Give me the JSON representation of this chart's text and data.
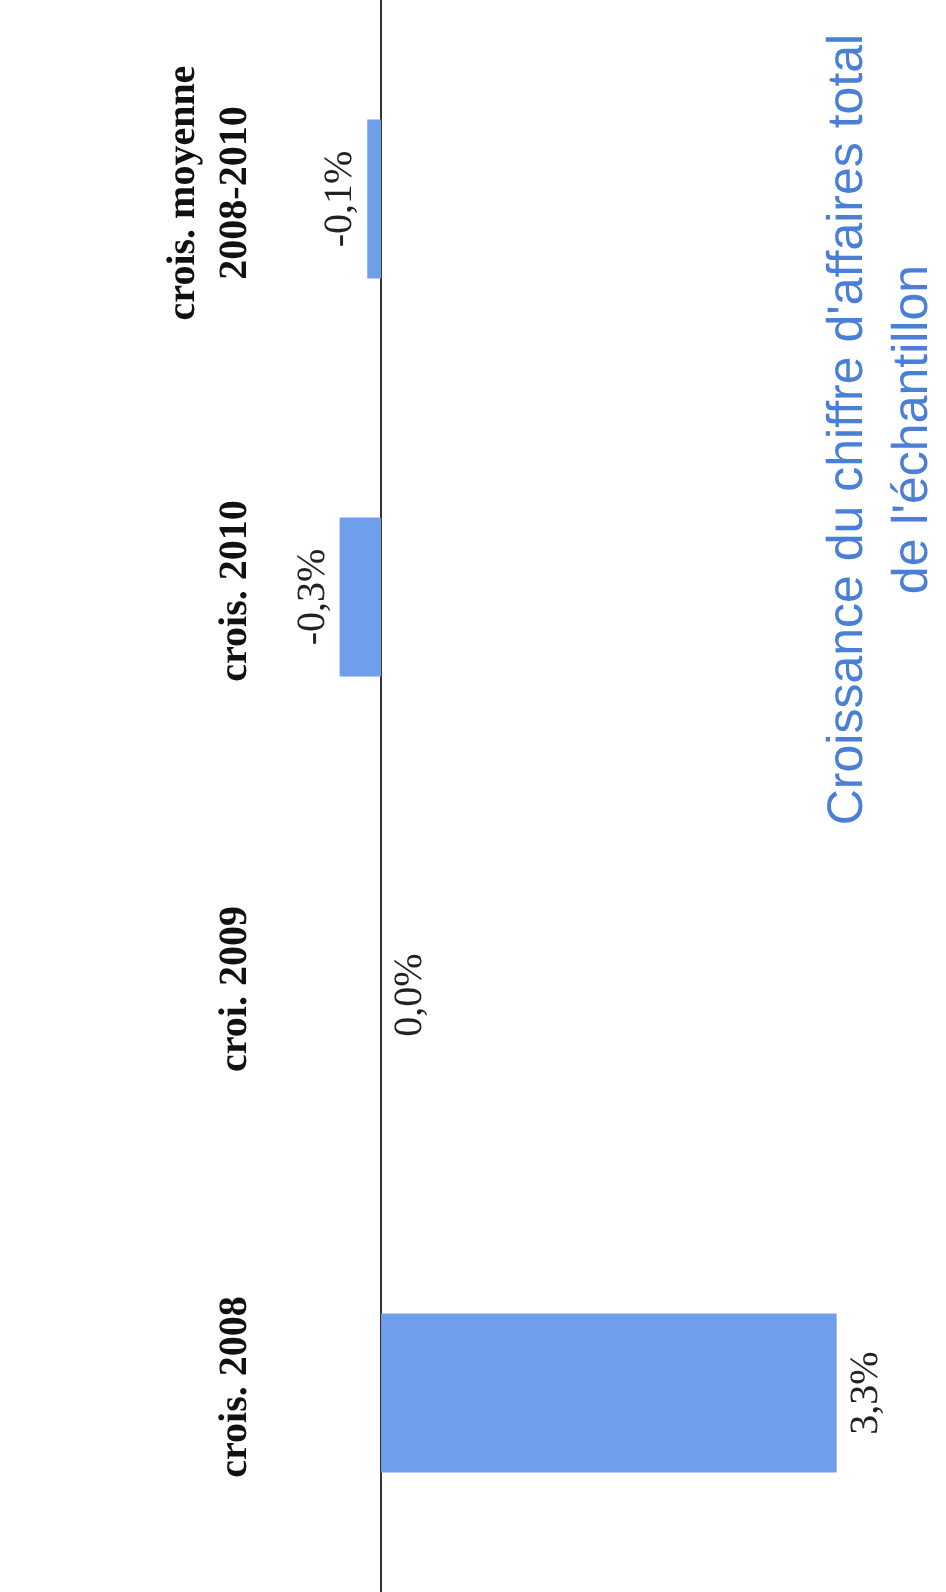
{
  "chart_data": {
    "type": "bar",
    "orientation": "horizontal",
    "title": "Croissance du chiffre d'affaires total\nde l'échantillon",
    "categories": [
      "crois. moyenne\n2008-2010",
      "crois. 2010",
      "croi. 2009",
      "crois. 2008"
    ],
    "values": [
      -0.1,
      -0.3,
      0.0,
      3.3
    ],
    "value_labels": [
      "-0,1%",
      "-0,3%",
      "0,0%",
      "3,3%"
    ],
    "color": "#6f9fea",
    "tick_labels": "y"
  }
}
